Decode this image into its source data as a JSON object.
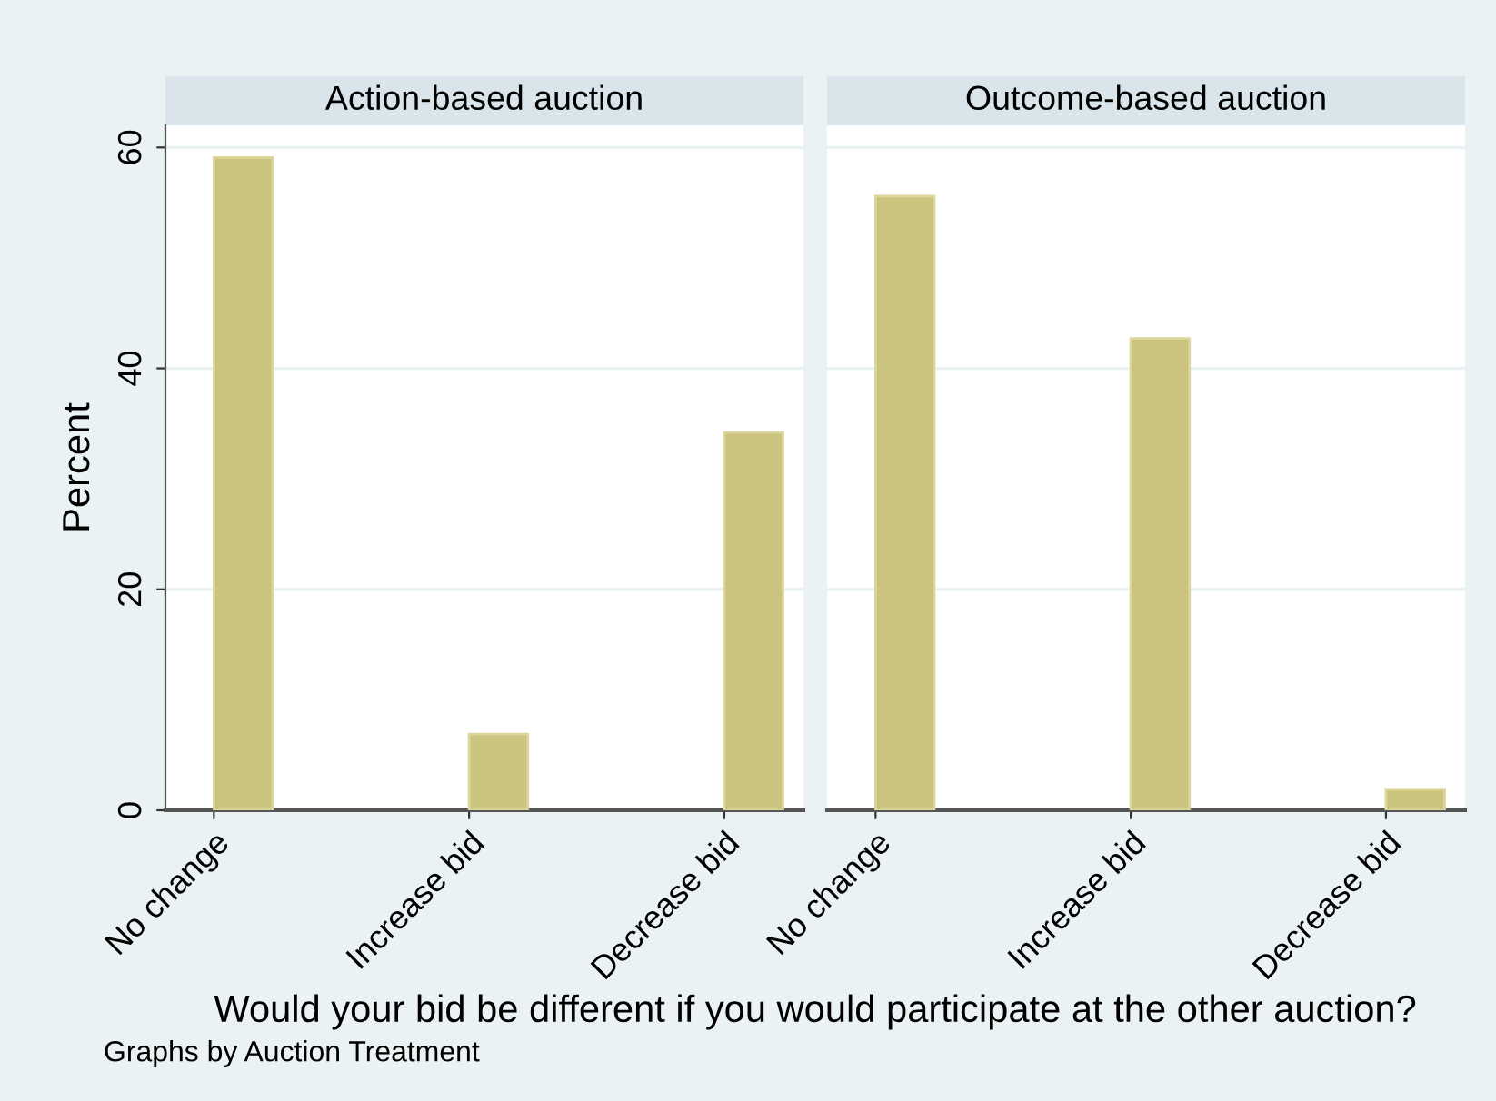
{
  "chart_data": [
    {
      "type": "bar",
      "title": "Action-based auction",
      "xlabel": "Would your bid be different if you would participate at the other auction?",
      "ylabel": "Percent",
      "annotations": [
        "Graphs by Auction Treatment"
      ],
      "categories": [
        "No change",
        "Increase bid",
        "Decrease bid"
      ],
      "values": [
        59.1,
        6.9,
        34.2
      ],
      "color": "#cbc47f",
      "ylim": [
        0,
        62
      ],
      "yticks": [
        0,
        20,
        40,
        60
      ],
      "grid": "y"
    },
    {
      "type": "bar",
      "title": "Outcome-based auction",
      "categories": [
        "No change",
        "Increase bid",
        "Decrease bid"
      ],
      "values": [
        55.6,
        42.7,
        1.9
      ],
      "color": "#cbc47f",
      "ylim": [
        0,
        62
      ],
      "yticks": [
        0,
        20,
        40,
        60
      ],
      "grid": "y",
      "tick_labels": "x"
    }
  ]
}
